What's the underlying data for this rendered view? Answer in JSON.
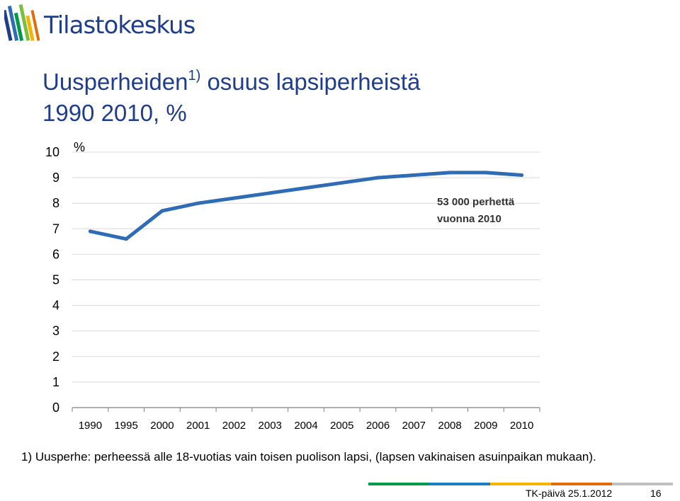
{
  "header": {
    "logo_text": "Tilastokeskus",
    "title_part1": "Uusperheiden",
    "title_sup": "1)",
    "title_part2": "osuus lapsiperheistä",
    "title_line2": "1990 2010, %"
  },
  "chart_data": {
    "type": "line",
    "title": "",
    "ylabel": "%",
    "xlabel": "",
    "categories": [
      "1990",
      "1995",
      "2000",
      "2001",
      "2002",
      "2003",
      "2004",
      "2005",
      "2006",
      "2007",
      "2008",
      "2009",
      "2010"
    ],
    "series": [
      {
        "values": [
          6.9,
          6.6,
          7.7,
          8.0,
          8.2,
          8.4,
          8.6,
          8.8,
          9.0,
          9.1,
          9.2,
          9.2,
          9.1
        ]
      }
    ],
    "ylim": [
      0,
      10
    ],
    "yticks": [
      0,
      1,
      2,
      3,
      4,
      5,
      6,
      7,
      8,
      9,
      10
    ],
    "grid": true,
    "annotation_line1": "53 000 perhettä",
    "annotation_line2": "vuonna 2010",
    "series_color": "#2e6db5"
  },
  "footnote": "1) Uusperhe: perheessä alle 18-vuotias vain toisen puolison lapsi, (lapsen vakinaisen asuinpaikan mukaan).",
  "footer": {
    "date": "TK-päivä 25.1.2012",
    "page": "16",
    "rule_colors": [
      "#009b48",
      "#1a7fc1",
      "#f4b400",
      "#e36c09",
      "#c0c0c0"
    ]
  }
}
